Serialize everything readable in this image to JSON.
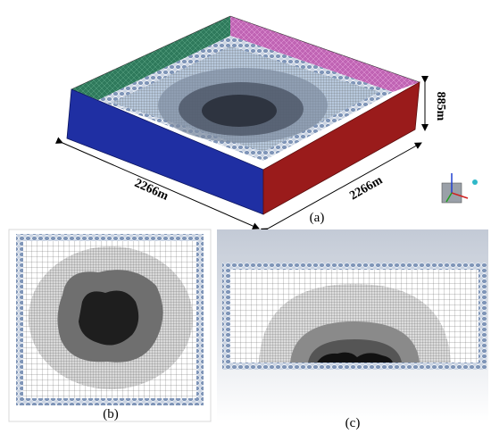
{
  "panel_a": {
    "label": "(a)",
    "width_label": "2266m",
    "depth_label": "2266m",
    "height_label": "885m"
  },
  "panel_b": {
    "label": "(b)"
  },
  "panel_c": {
    "label": "(c)"
  }
}
